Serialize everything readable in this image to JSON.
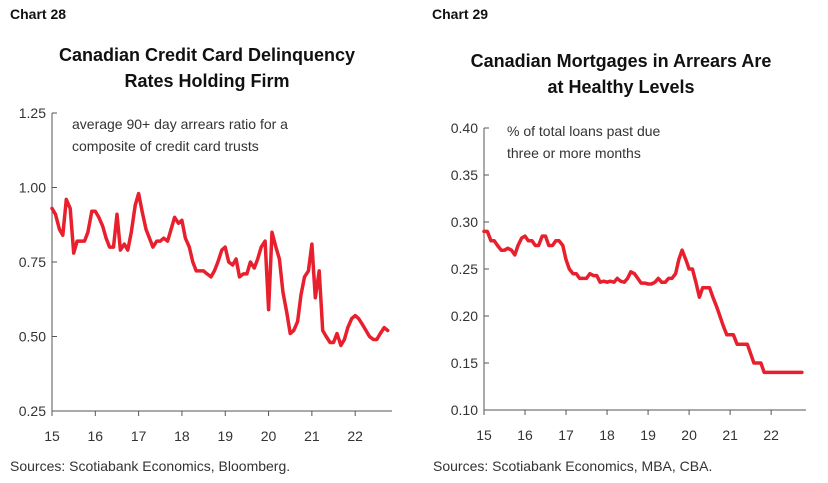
{
  "colors": {
    "series": "#e8202e",
    "axis": "#555555",
    "text": "#333333"
  },
  "chart_data": [
    {
      "type": "line",
      "label": "Chart 28",
      "title": [
        "Canadian Credit Card Delinquency",
        "Rates Holding Firm"
      ],
      "annotation": [
        "average 90+ day arrears ratio for a",
        "composite of credit card trusts"
      ],
      "source": "Sources: Scotiabank Economics, Bloomberg.",
      "xlim": [
        15,
        22.85
      ],
      "ylim": [
        0.25,
        1.25
      ],
      "x_ticks": [
        15,
        16,
        17,
        18,
        19,
        20,
        21,
        22
      ],
      "x_tick_labels": [
        "15",
        "16",
        "17",
        "18",
        "19",
        "20",
        "21",
        "22"
      ],
      "y_ticks": [
        0.25,
        0.5,
        0.75,
        1.0,
        1.25
      ],
      "y_tick_labels": [
        "0.25",
        "0.50",
        "0.75",
        "1.00",
        "1.25"
      ],
      "grid": false,
      "series": [
        {
          "x": [
            15.0,
            15.08,
            15.17,
            15.25,
            15.33,
            15.42,
            15.5,
            15.58,
            15.67,
            15.75,
            15.83,
            15.92,
            16.0,
            16.08,
            16.17,
            16.25,
            16.33,
            16.42,
            16.5,
            16.58,
            16.67,
            16.75,
            16.83,
            16.92,
            17.0,
            17.08,
            17.17,
            17.25,
            17.33,
            17.42,
            17.5,
            17.58,
            17.67,
            17.75,
            17.83,
            17.92,
            18.0,
            18.08,
            18.17,
            18.25,
            18.33,
            18.42,
            18.5,
            18.58,
            18.67,
            18.75,
            18.83,
            18.92,
            19.0,
            19.08,
            19.17,
            19.25,
            19.33,
            19.42,
            19.5,
            19.58,
            19.67,
            19.75,
            19.83,
            19.92,
            20.0,
            20.08,
            20.17,
            20.25,
            20.33,
            20.42,
            20.5,
            20.58,
            20.67,
            20.75,
            20.83,
            20.92,
            21.0,
            21.08,
            21.17,
            21.25,
            21.33,
            21.42,
            21.5,
            21.58,
            21.67,
            21.75,
            21.83,
            21.92,
            22.0,
            22.08,
            22.17,
            22.25,
            22.33,
            22.42,
            22.5,
            22.58,
            22.67,
            22.75
          ],
          "y": [
            0.93,
            0.91,
            0.86,
            0.84,
            0.96,
            0.93,
            0.78,
            0.82,
            0.82,
            0.82,
            0.85,
            0.92,
            0.92,
            0.9,
            0.87,
            0.83,
            0.8,
            0.8,
            0.91,
            0.79,
            0.81,
            0.79,
            0.85,
            0.94,
            0.98,
            0.92,
            0.86,
            0.83,
            0.8,
            0.82,
            0.82,
            0.83,
            0.82,
            0.86,
            0.9,
            0.88,
            0.89,
            0.83,
            0.8,
            0.75,
            0.72,
            0.72,
            0.72,
            0.71,
            0.7,
            0.72,
            0.75,
            0.79,
            0.8,
            0.75,
            0.74,
            0.76,
            0.7,
            0.71,
            0.71,
            0.75,
            0.73,
            0.76,
            0.8,
            0.82,
            0.59,
            0.85,
            0.8,
            0.76,
            0.65,
            0.58,
            0.51,
            0.52,
            0.55,
            0.64,
            0.7,
            0.72,
            0.81,
            0.63,
            0.72,
            0.52,
            0.5,
            0.48,
            0.48,
            0.51,
            0.47,
            0.49,
            0.53,
            0.56,
            0.57,
            0.56,
            0.54,
            0.52,
            0.5,
            0.49,
            0.49,
            0.51,
            0.53,
            0.52
          ]
        }
      ]
    },
    {
      "type": "line",
      "label": "Chart 29",
      "title": [
        "Canadian Mortgages in Arrears Are",
        "at Healthy Levels"
      ],
      "annotation": [
        "% of total loans past due",
        "three or more months"
      ],
      "source": "Sources: Scotiabank Economics, MBA, CBA.",
      "xlim": [
        15,
        22.85
      ],
      "ylim": [
        0.1,
        0.4
      ],
      "x_ticks": [
        15,
        16,
        17,
        18,
        19,
        20,
        21,
        22
      ],
      "x_tick_labels": [
        "15",
        "16",
        "17",
        "18",
        "19",
        "20",
        "21",
        "22"
      ],
      "y_ticks": [
        0.1,
        0.15,
        0.2,
        0.25,
        0.3,
        0.35,
        0.4
      ],
      "y_tick_labels": [
        "0.10",
        "0.15",
        "0.20",
        "0.25",
        "0.30",
        "0.35",
        "0.40"
      ],
      "grid": false,
      "series": [
        {
          "x": [
            15.0,
            15.08,
            15.17,
            15.25,
            15.33,
            15.42,
            15.5,
            15.58,
            15.67,
            15.75,
            15.83,
            15.92,
            16.0,
            16.08,
            16.17,
            16.25,
            16.33,
            16.42,
            16.5,
            16.58,
            16.67,
            16.75,
            16.83,
            16.92,
            17.0,
            17.08,
            17.17,
            17.25,
            17.33,
            17.42,
            17.5,
            17.58,
            17.67,
            17.75,
            17.83,
            17.92,
            18.0,
            18.08,
            18.17,
            18.25,
            18.33,
            18.42,
            18.5,
            18.58,
            18.67,
            18.75,
            18.83,
            18.92,
            19.0,
            19.08,
            19.17,
            19.25,
            19.33,
            19.42,
            19.5,
            19.58,
            19.67,
            19.75,
            19.83,
            19.92,
            20.0,
            20.08,
            20.17,
            20.25,
            20.33,
            20.42,
            20.5,
            20.58,
            20.67,
            20.75,
            20.83,
            20.92,
            21.0,
            21.08,
            21.17,
            21.25,
            21.33,
            21.42,
            21.5,
            21.58,
            21.67,
            21.75,
            21.83,
            21.92,
            22.0,
            22.08,
            22.17,
            22.25,
            22.33,
            22.42,
            22.5,
            22.58,
            22.67,
            22.75
          ],
          "y": [
            0.29,
            0.29,
            0.28,
            0.28,
            0.275,
            0.27,
            0.27,
            0.272,
            0.27,
            0.265,
            0.275,
            0.283,
            0.285,
            0.28,
            0.28,
            0.275,
            0.275,
            0.285,
            0.285,
            0.275,
            0.275,
            0.28,
            0.28,
            0.275,
            0.26,
            0.25,
            0.245,
            0.245,
            0.24,
            0.24,
            0.24,
            0.245,
            0.243,
            0.243,
            0.236,
            0.237,
            0.236,
            0.237,
            0.236,
            0.24,
            0.237,
            0.236,
            0.24,
            0.247,
            0.245,
            0.24,
            0.235,
            0.235,
            0.234,
            0.234,
            0.236,
            0.24,
            0.236,
            0.236,
            0.24,
            0.24,
            0.245,
            0.26,
            0.27,
            0.26,
            0.25,
            0.25,
            0.235,
            0.22,
            0.23,
            0.23,
            0.23,
            0.22,
            0.21,
            0.2,
            0.19,
            0.18,
            0.18,
            0.18,
            0.17,
            0.17,
            0.17,
            0.17,
            0.16,
            0.15,
            0.15,
            0.15,
            0.14,
            0.14,
            0.14,
            0.14,
            0.14,
            0.14,
            0.14,
            0.14,
            0.14,
            0.14,
            0.14,
            0.14
          ]
        }
      ]
    }
  ]
}
